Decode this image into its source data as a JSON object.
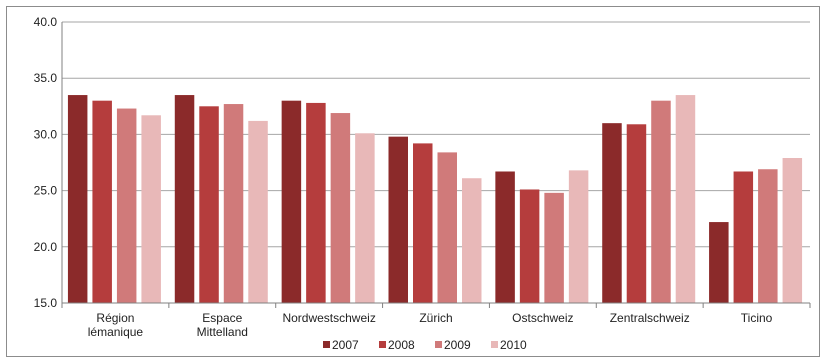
{
  "chart_data": {
    "type": "bar",
    "categories": [
      [
        "Région",
        "lémanique"
      ],
      [
        "Espace",
        "Mittelland"
      ],
      [
        "Nordwestschweiz"
      ],
      [
        "Zürich"
      ],
      [
        "Ostschweiz"
      ],
      [
        "Zentralschweiz"
      ],
      [
        "Ticino"
      ]
    ],
    "series": [
      {
        "name": "2007",
        "color": "#8b2a2a",
        "values": [
          33.5,
          33.5,
          33.0,
          29.8,
          26.7,
          31.0,
          22.2
        ]
      },
      {
        "name": "2008",
        "color": "#b53d3d",
        "values": [
          33.0,
          32.5,
          32.8,
          29.2,
          25.1,
          30.9,
          26.7
        ]
      },
      {
        "name": "2009",
        "color": "#d07a7a",
        "values": [
          32.3,
          32.7,
          31.9,
          28.4,
          24.8,
          33.0,
          26.9
        ]
      },
      {
        "name": "2010",
        "color": "#e8b8b8",
        "values": [
          31.7,
          31.2,
          30.1,
          26.1,
          26.8,
          33.5,
          27.9
        ]
      }
    ],
    "yticks": [
      "15.0",
      "20.0",
      "25.0",
      "30.0",
      "35.0",
      "40.0"
    ],
    "ylim": [
      15,
      40
    ],
    "legend_position": "bottom",
    "grid": "horizontal"
  }
}
